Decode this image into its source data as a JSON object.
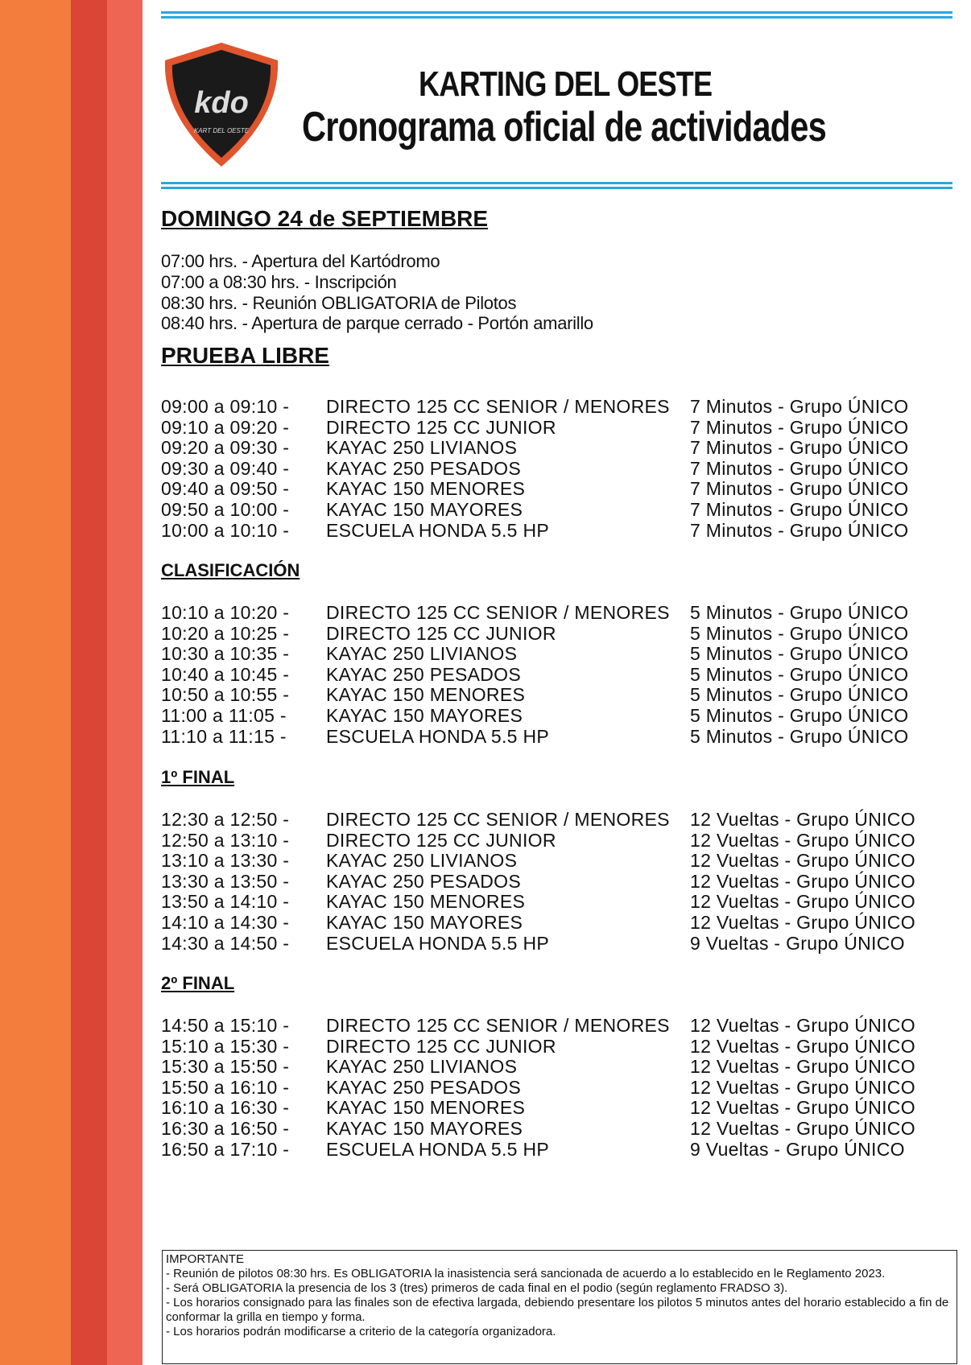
{
  "header": {
    "logo_text": "kdo",
    "logo_subtitle": "KART DEL OESTE",
    "title": "KARTING DEL OESTE",
    "subtitle": "Cronograma oficial de actividades"
  },
  "date_heading": "DOMINGO 24 de SEPTIEMBRE",
  "intro": [
    "07:00 hrs. - Apertura del Kartódromo",
    "07:00 a 08:30 hrs. - Inscripción",
    "08:30 hrs. - Reunión OBLIGATORIA de Pilotos",
    "08:40 hrs. - Apertura de parque cerrado - Portón amarillo"
  ],
  "sections": [
    {
      "title": "PRUEBA LIBRE",
      "rows": [
        [
          "09:00 a 09:10 -",
          "DIRECTO 125 CC SENIOR / MENORES",
          "7 Minutos - Grupo ÚNICO"
        ],
        [
          "09:10 a 09:20 -",
          "DIRECTO 125 CC JUNIOR",
          "7 Minutos - Grupo ÚNICO"
        ],
        [
          "09:20 a 09:30 -",
          "KAYAC 250 LIVIANOS",
          "7 Minutos - Grupo ÚNICO"
        ],
        [
          "09:30 a 09:40 -",
          "KAYAC 250 PESADOS",
          "7 Minutos - Grupo ÚNICO"
        ],
        [
          "09:40 a 09:50 -",
          "KAYAC 150 MENORES",
          "7 Minutos - Grupo ÚNICO"
        ],
        [
          "09:50 a 10:00 -",
          "KAYAC 150 MAYORES",
          "7 Minutos - Grupo ÚNICO"
        ],
        [
          "10:00 a 10:10 -",
          "ESCUELA HONDA 5.5  HP",
          "7 Minutos - Grupo ÚNICO"
        ]
      ]
    },
    {
      "title": "CLASIFICACIÓN",
      "rows": [
        [
          "10:10 a 10:20 -",
          "DIRECTO 125 CC SENIOR / MENORES",
          "5 Minutos - Grupo ÚNICO"
        ],
        [
          "10:20 a 10:25 -",
          "DIRECTO 125 CC JUNIOR",
          "5 Minutos - Grupo ÚNICO"
        ],
        [
          "10:30 a 10:35 -",
          "KAYAC 250 LIVIANOS",
          "5 Minutos - Grupo ÚNICO"
        ],
        [
          "10:40 a 10:45 -",
          "KAYAC 250 PESADOS",
          "5 Minutos - Grupo ÚNICO"
        ],
        [
          "10:50 a 10:55 -",
          "KAYAC 150 MENORES",
          "5 Minutos - Grupo ÚNICO"
        ],
        [
          "11:00 a 11:05 -",
          "KAYAC 150 MAYORES",
          "5 Minutos - Grupo ÚNICO"
        ],
        [
          "11:10 a 11:15 -",
          "ESCUELA HONDA 5.5  HP",
          "5 Minutos - Grupo ÚNICO"
        ]
      ]
    },
    {
      "title": "1º FINAL",
      "rows": [
        [
          "12:30 a 12:50 -",
          "DIRECTO 125 CC SENIOR / MENORES",
          "12 Vueltas - Grupo ÚNICO"
        ],
        [
          "12:50 a 13:10 -",
          "DIRECTO 125 CC JUNIOR",
          "12 Vueltas - Grupo ÚNICO"
        ],
        [
          "13:10 a 13:30 -",
          "KAYAC 250 LIVIANOS",
          "12 Vueltas - Grupo ÚNICO"
        ],
        [
          "13:30 a 13:50 -",
          "KAYAC 250 PESADOS",
          "12 Vueltas - Grupo ÚNICO"
        ],
        [
          "13:50 a 14:10 -",
          "KAYAC 150 MENORES",
          "12 Vueltas - Grupo ÚNICO"
        ],
        [
          "14:10 a 14:30 -",
          "KAYAC 150 MAYORES",
          "12 Vueltas - Grupo ÚNICO"
        ],
        [
          "14:30 a 14:50 -",
          "ESCUELA HONDA 5.5  HP",
          "9 Vueltas - Grupo ÚNICO"
        ]
      ]
    },
    {
      "title": "2º FINAL",
      "rows": [
        [
          "14:50 a 15:10 -",
          "DIRECTO 125 CC SENIOR / MENORES",
          "12 Vueltas - Grupo ÚNICO"
        ],
        [
          "15:10 a 15:30 -",
          "DIRECTO 125 CC JUNIOR",
          "12 Vueltas - Grupo ÚNICO"
        ],
        [
          "15:30 a 15:50 -",
          "KAYAC 250 LIVIANOS",
          "12 Vueltas - Grupo ÚNICO"
        ],
        [
          "15:50 a 16:10 -",
          "KAYAC 250 PESADOS",
          "12 Vueltas - Grupo ÚNICO"
        ],
        [
          "16:10 a 16:30 -",
          "KAYAC 150 MENORES",
          "12 Vueltas - Grupo ÚNICO"
        ],
        [
          "16:30 a 16:50 -",
          "KAYAC 150 MAYORES",
          "12 Vueltas - Grupo ÚNICO"
        ],
        [
          "16:50 a 17:10 -",
          "ESCUELA HONDA 5.5  HP",
          "9 Vueltas - Grupo ÚNICO"
        ]
      ]
    }
  ],
  "notes": {
    "title": "IMPORTANTE",
    "items": [
      "- Reunión de pilotos 08:30 hrs. Es OBLIGATORIA la inasistencia será sancionada de  acuerdo a lo establecido  en le Reglamento 2023.",
      "- Será OBLIGATORIA la presencia de los 3 (tres) primeros de cada final en el podio (según reglamento FRADSO 3).",
      "- Los horarios consignado para las finales son de efectiva largada, debiendo presentare los pilotos 5 minutos antes del horario establecido a fin de conformar la grilla en tiempo y forma.",
      "- Los horarios podrán modificarse a criterio de la categoría organizadora."
    ]
  }
}
